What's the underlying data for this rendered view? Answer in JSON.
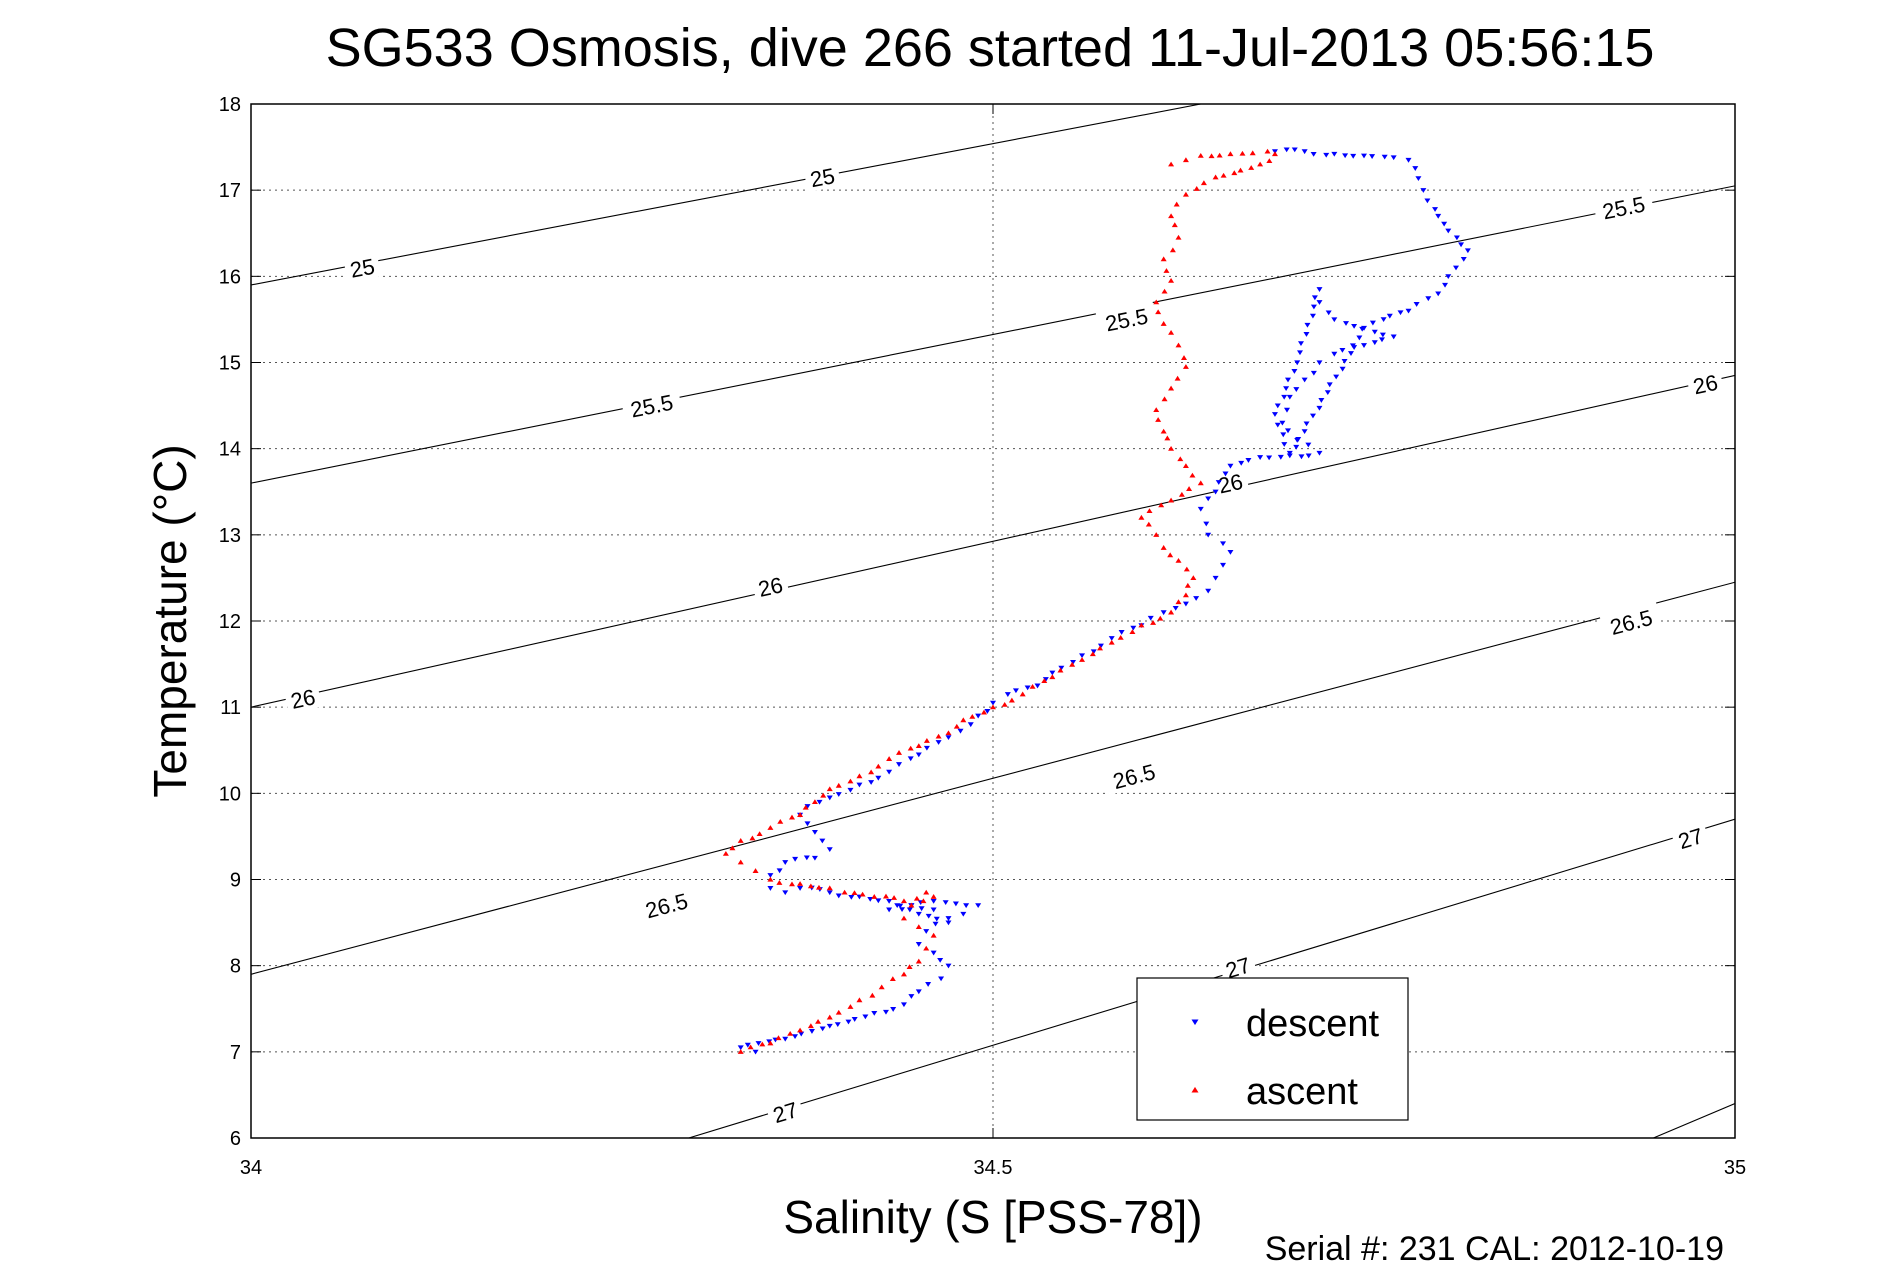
{
  "chart_data": {
    "type": "scatter",
    "title": "SG533 Osmosis, dive 266 started 11-Jul-2013 05:56:15",
    "xlabel": "Salinity (S [PSS-78])",
    "ylabel": "Temperature (°C)",
    "xlim": [
      34,
      35
    ],
    "ylim": [
      6,
      18
    ],
    "x_ticks": [
      "34",
      "34.5",
      "35"
    ],
    "y_ticks": [
      "6",
      "7",
      "8",
      "9",
      "10",
      "11",
      "12",
      "13",
      "14",
      "15",
      "16",
      "17",
      "18"
    ],
    "grid": "on",
    "legend_position": "bottom-right",
    "footer": "Serial #: 231  CAL: 2012-10-19",
    "density_contours": [
      {
        "label": "25",
        "points": [
          [
            34,
            15.9
          ],
          [
            34.64,
            18.0
          ]
        ],
        "label_at": [
          [
            34.075,
            16.1
          ],
          [
            34.385,
            17.15
          ]
        ]
      },
      {
        "label": "25.5",
        "points": [
          [
            34,
            13.6
          ],
          [
            35,
            17.05
          ]
        ],
        "label_at": [
          [
            34.27,
            14.5
          ],
          [
            34.59,
            15.5
          ],
          [
            34.925,
            16.8
          ]
        ]
      },
      {
        "label": "26",
        "points": [
          [
            34,
            11.0
          ],
          [
            35,
            14.85
          ]
        ],
        "label_at": [
          [
            34.035,
            11.1
          ],
          [
            34.35,
            12.4
          ],
          [
            34.66,
            13.6
          ],
          [
            34.98,
            14.75
          ]
        ]
      },
      {
        "label": "26.5",
        "points": [
          [
            34,
            7.9
          ],
          [
            35,
            12.45
          ]
        ],
        "label_at": [
          [
            34.28,
            8.7
          ],
          [
            34.595,
            10.2
          ],
          [
            34.93,
            11.99
          ]
        ]
      },
      {
        "label": "27",
        "points": [
          [
            34.295,
            6.0
          ],
          [
            35,
            9.7
          ]
        ],
        "label_at": [
          [
            34.36,
            6.3
          ],
          [
            34.665,
            7.98
          ],
          [
            34.97,
            9.48
          ]
        ]
      },
      {
        "label": "",
        "points": [
          [
            34.945,
            6.0
          ],
          [
            35,
            6.4
          ]
        ],
        "label_at": []
      }
    ],
    "series": [
      {
        "name": "descent",
        "color": "#0000ff",
        "marker": "triangle-down",
        "x": [
          34.34,
          34.33,
          34.36,
          34.39,
          34.42,
          34.44,
          34.45,
          34.465,
          34.47,
          34.46,
          34.45,
          34.455,
          34.47,
          34.46,
          34.445,
          34.43,
          34.445,
          34.46,
          34.475,
          34.49,
          34.48,
          34.47,
          34.45,
          34.43,
          34.41,
          34.39,
          34.37,
          34.36,
          34.35,
          34.35,
          34.36,
          34.38,
          34.39,
          34.385,
          34.38,
          34.375,
          34.37,
          34.375,
          34.39,
          34.41,
          34.43,
          34.45,
          34.47,
          34.485,
          34.49,
          34.5,
          34.51,
          34.53,
          34.54,
          34.56,
          34.58,
          34.6,
          34.615,
          34.63,
          34.645,
          34.65,
          34.655,
          34.66,
          34.655,
          34.645,
          34.64,
          34.65,
          34.66,
          34.68,
          34.7,
          34.72,
          34.705,
          34.695,
          34.7,
          34.71,
          34.72,
          34.73,
          34.75,
          34.77,
          34.73,
          34.72,
          34.72,
          34.705,
          34.69,
          34.7,
          34.75,
          34.78,
          34.8,
          34.82,
          34.8,
          34.79,
          34.78,
          34.77,
          34.75,
          34.73,
          34.71,
          34.69
        ],
        "y": [
          7.0,
          7.05,
          7.15,
          7.3,
          7.45,
          7.55,
          7.7,
          7.85,
          8.0,
          8.15,
          8.25,
          8.4,
          8.55,
          8.65,
          8.7,
          8.65,
          8.7,
          8.75,
          8.72,
          8.7,
          8.6,
          8.5,
          8.6,
          8.75,
          8.8,
          8.85,
          8.9,
          8.85,
          8.9,
          9.05,
          9.2,
          9.25,
          9.35,
          9.45,
          9.55,
          9.65,
          9.75,
          9.85,
          9.95,
          10.1,
          10.25,
          10.45,
          10.65,
          10.8,
          10.9,
          11.05,
          11.15,
          11.25,
          11.4,
          11.6,
          11.8,
          11.95,
          12.1,
          12.2,
          12.35,
          12.5,
          12.65,
          12.8,
          12.9,
          13.0,
          13.3,
          13.5,
          13.8,
          13.9,
          13.92,
          13.95,
          14.1,
          14.3,
          14.6,
          14.8,
          15.0,
          15.1,
          15.2,
          15.3,
          15.5,
          15.7,
          15.85,
          15.0,
          14.4,
          13.95,
          15.4,
          15.6,
          15.8,
          16.3,
          16.7,
          17.0,
          17.35,
          17.38,
          17.4,
          17.42,
          17.45,
          17.45
        ]
      },
      {
        "name": "ascent",
        "color": "#ff0000",
        "marker": "triangle-up",
        "x": [
          34.33,
          34.35,
          34.37,
          34.39,
          34.41,
          34.425,
          34.44,
          34.45,
          34.455,
          34.46,
          34.45,
          34.44,
          34.445,
          34.46,
          34.455,
          34.44,
          34.42,
          34.4,
          34.39,
          34.37,
          34.35,
          34.34,
          34.33,
          34.32,
          34.33,
          34.35,
          34.37,
          34.38,
          34.39,
          34.41,
          34.43,
          34.45,
          34.47,
          34.48,
          34.5,
          34.52,
          34.54,
          34.56,
          34.58,
          34.6,
          34.62,
          34.63,
          34.635,
          34.625,
          34.615,
          34.61,
          34.6,
          34.62,
          34.64,
          34.63,
          34.62,
          34.615,
          34.61,
          34.62,
          34.63,
          34.625,
          34.615,
          34.61,
          34.62,
          34.615,
          34.625,
          34.62,
          34.63,
          34.65,
          34.68,
          34.69,
          34.685,
          34.675,
          34.66,
          34.64,
          34.63,
          34.62
        ],
        "y": [
          7.0,
          7.1,
          7.25,
          7.4,
          7.6,
          7.75,
          7.9,
          8.05,
          8.2,
          8.35,
          8.45,
          8.55,
          8.7,
          8.8,
          8.85,
          8.75,
          8.8,
          8.85,
          8.9,
          8.95,
          9.0,
          9.1,
          9.2,
          9.3,
          9.45,
          9.6,
          9.75,
          9.9,
          10.05,
          10.2,
          10.4,
          10.55,
          10.7,
          10.85,
          11.0,
          11.15,
          11.35,
          11.55,
          11.75,
          11.95,
          12.1,
          12.3,
          12.5,
          12.7,
          12.85,
          13.0,
          13.2,
          13.4,
          13.6,
          13.8,
          14.0,
          14.2,
          14.45,
          14.7,
          14.95,
          15.2,
          15.45,
          15.7,
          15.95,
          16.2,
          16.45,
          16.7,
          16.95,
          17.15,
          17.3,
          17.42,
          17.45,
          17.43,
          17.42,
          17.4,
          17.35,
          17.3
        ]
      }
    ]
  }
}
